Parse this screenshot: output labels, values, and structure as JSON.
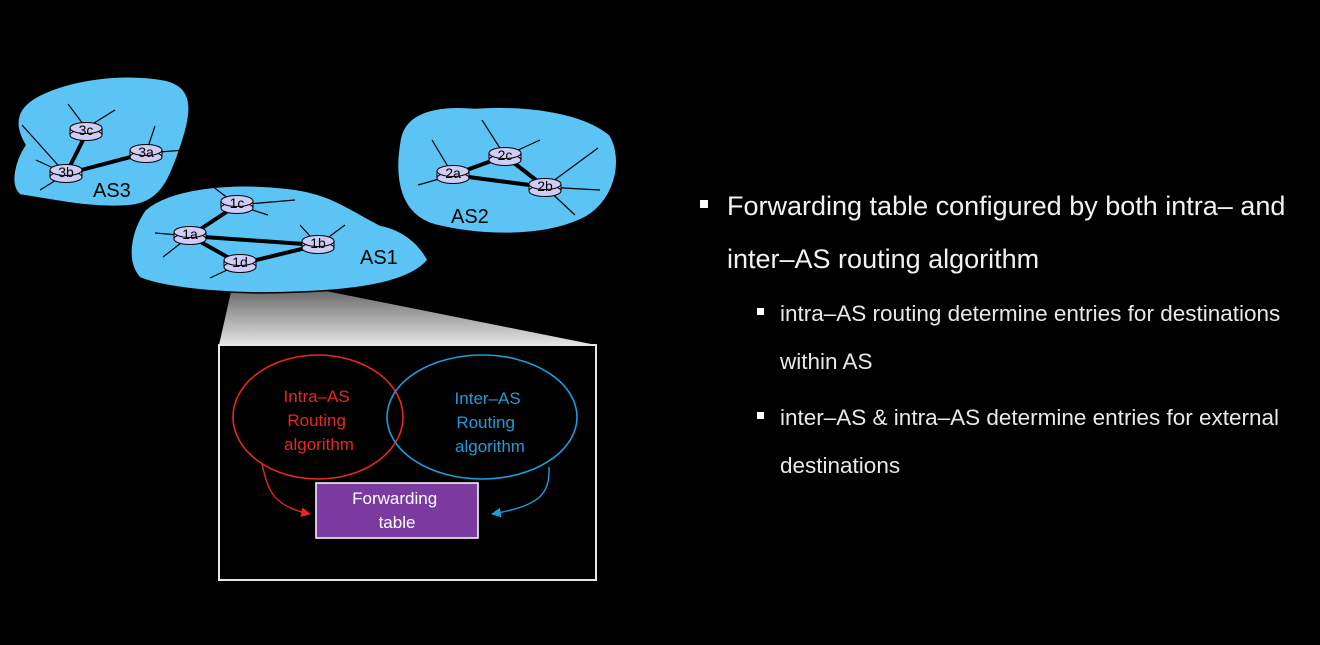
{
  "diagram": {
    "as3": {
      "label": "AS3",
      "routers": {
        "a": "3a",
        "b": "3b",
        "c": "3c"
      }
    },
    "as2": {
      "label": "AS2",
      "routers": {
        "a": "2a",
        "b": "2b",
        "c": "2c"
      }
    },
    "as1": {
      "label": "AS1",
      "routers": {
        "a": "1a",
        "b": "1b",
        "c": "1c",
        "d": "1d"
      }
    },
    "intra_label": [
      "Intra–AS",
      "Routing",
      "algorithm"
    ],
    "inter_label": [
      "Inter–AS",
      "Routing",
      "algorithm"
    ],
    "table_label": [
      "Forwarding",
      "table"
    ],
    "colors": {
      "cloud": "#5bc4f5",
      "router": "#cfcdf5",
      "intra": "#e8281e",
      "inter": "#1d9cdc",
      "table": "#7a3aa0"
    }
  },
  "bullets": {
    "main": "Forwarding table  configured by both intra– and inter–AS routing algorithm",
    "subs": [
      "intra–AS routing determine entries for destinations within AS",
      "inter–AS & intra–AS determine entries for external destinations"
    ]
  }
}
